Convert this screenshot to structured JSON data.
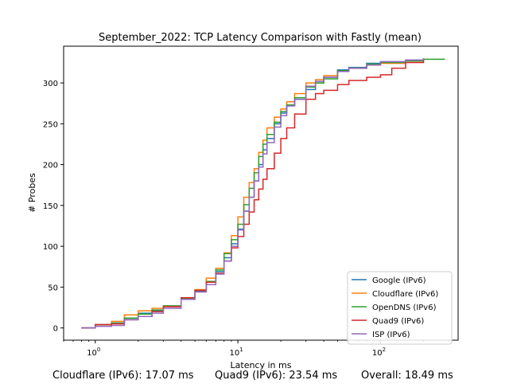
{
  "chart_data": {
    "type": "line",
    "title": "September_2022: TCP Latency Comparison with Fastly (mean)",
    "xlabel": "Latency in ms",
    "ylabel": "# Probes",
    "xscale": "log",
    "xlim": [
      0.6,
      350
    ],
    "ylim": [
      -15,
      345
    ],
    "xticks": [
      {
        "value": 1,
        "base": "10",
        "exp": "0"
      },
      {
        "value": 10,
        "base": "10",
        "exp": "1"
      },
      {
        "value": 100,
        "base": "10",
        "exp": "2"
      }
    ],
    "yticks": [
      0,
      50,
      100,
      150,
      200,
      250,
      300
    ],
    "legend_position": "lower-right",
    "grid": false,
    "series": [
      {
        "name": "Google (IPv6)",
        "color": "#1f77b4",
        "x": [
          0.8,
          1.0,
          1.3,
          1.6,
          2.0,
          2.5,
          3.0,
          4.0,
          5.0,
          6.0,
          7.0,
          8.0,
          9.0,
          10.0,
          11.0,
          12.0,
          13.0,
          14.0,
          15.0,
          16.0,
          18.0,
          20.0,
          22.0,
          25.0,
          30.0,
          35.0,
          40.0,
          50.0,
          60.0,
          80.0,
          100.0,
          150.0,
          200.0
        ],
        "y": [
          0,
          4,
          6,
          12,
          18,
          21,
          27,
          36,
          45,
          56,
          69,
          86,
          103,
          121,
          143,
          160,
          180,
          200,
          218,
          232,
          250,
          263,
          272,
          280,
          292,
          300,
          307,
          316,
          319,
          324,
          326,
          328,
          330
        ]
      },
      {
        "name": "Cloudflare (IPv6)",
        "color": "#ff7f0e",
        "x": [
          0.8,
          1.0,
          1.3,
          1.6,
          2.0,
          2.5,
          3.0,
          4.0,
          5.0,
          6.0,
          7.0,
          8.0,
          9.0,
          10.0,
          11.0,
          12.0,
          13.0,
          14.0,
          15.0,
          16.0,
          18.0,
          20.0,
          22.0,
          25.0,
          30.0,
          35.0,
          40.0,
          50.0,
          60.0,
          80.0,
          100.0,
          150.0,
          200.0
        ],
        "y": [
          0,
          4,
          8,
          16,
          21,
          24,
          27,
          35,
          47,
          61,
          73,
          92,
          113,
          136,
          160,
          178,
          195,
          215,
          230,
          245,
          258,
          268,
          277,
          287,
          300,
          304,
          309,
          315,
          318,
          322,
          324,
          327,
          330
        ]
      },
      {
        "name": "OpenDNS (IPv6)",
        "color": "#2ca02c",
        "x": [
          0.8,
          1.0,
          1.3,
          1.6,
          2.0,
          2.5,
          3.0,
          4.0,
          5.0,
          6.0,
          7.0,
          8.0,
          9.0,
          10.0,
          11.0,
          12.0,
          13.0,
          14.0,
          15.0,
          16.0,
          18.0,
          20.0,
          22.0,
          25.0,
          30.0,
          35.0,
          40.0,
          50.0,
          60.0,
          80.0,
          100.0,
          150.0,
          200.0,
          280.0
        ],
        "y": [
          0,
          4,
          6,
          12,
          17,
          22,
          27,
          36,
          46,
          57,
          71,
          91,
          108,
          127,
          151,
          171,
          190,
          210,
          225,
          237,
          252,
          265,
          273,
          282,
          295,
          300,
          305,
          315,
          318,
          323,
          325,
          327,
          329,
          330
        ]
      },
      {
        "name": "Quad9 (IPv6)",
        "color": "#d62728",
        "x": [
          0.8,
          1.0,
          1.3,
          1.6,
          2.0,
          2.5,
          3.0,
          4.0,
          5.0,
          6.0,
          7.0,
          8.0,
          9.0,
          10.0,
          11.0,
          12.0,
          13.0,
          14.0,
          15.0,
          16.0,
          18.0,
          20.0,
          22.0,
          25.0,
          30.0,
          35.0,
          40.0,
          50.0,
          60.0,
          80.0,
          100.0,
          120.0,
          150.0,
          200.0
        ],
        "y": [
          0,
          4,
          5,
          10,
          14,
          20,
          26,
          37,
          46,
          56,
          67,
          82,
          98,
          112,
          127,
          142,
          157,
          170,
          182,
          195,
          214,
          232,
          245,
          262,
          280,
          287,
          291,
          298,
          303,
          307,
          310,
          318,
          325,
          330
        ]
      },
      {
        "name": "ISP (IPv6)",
        "color": "#9467bd",
        "x": [
          0.8,
          1.0,
          1.3,
          1.6,
          2.0,
          2.5,
          3.0,
          4.0,
          5.0,
          6.0,
          7.0,
          8.0,
          9.0,
          10.0,
          11.0,
          12.0,
          13.0,
          14.0,
          15.0,
          16.0,
          18.0,
          20.0,
          22.0,
          25.0,
          30.0,
          35.0,
          40.0,
          50.0,
          60.0,
          80.0,
          100.0,
          150.0,
          200.0
        ],
        "y": [
          0,
          2,
          3,
          10,
          14,
          18,
          24,
          35,
          44,
          53,
          66,
          82,
          100,
          120,
          143,
          160,
          180,
          197,
          213,
          227,
          246,
          260,
          272,
          280,
          296,
          302,
          307,
          314,
          318,
          322,
          326,
          328,
          330
        ]
      }
    ]
  },
  "footer": {
    "cloudflare": "Cloudflare (IPv6): 17.07 ms",
    "quad9": "Quad9 (IPv6): 23.54 ms",
    "overall": "Overall: 18.49 ms"
  }
}
